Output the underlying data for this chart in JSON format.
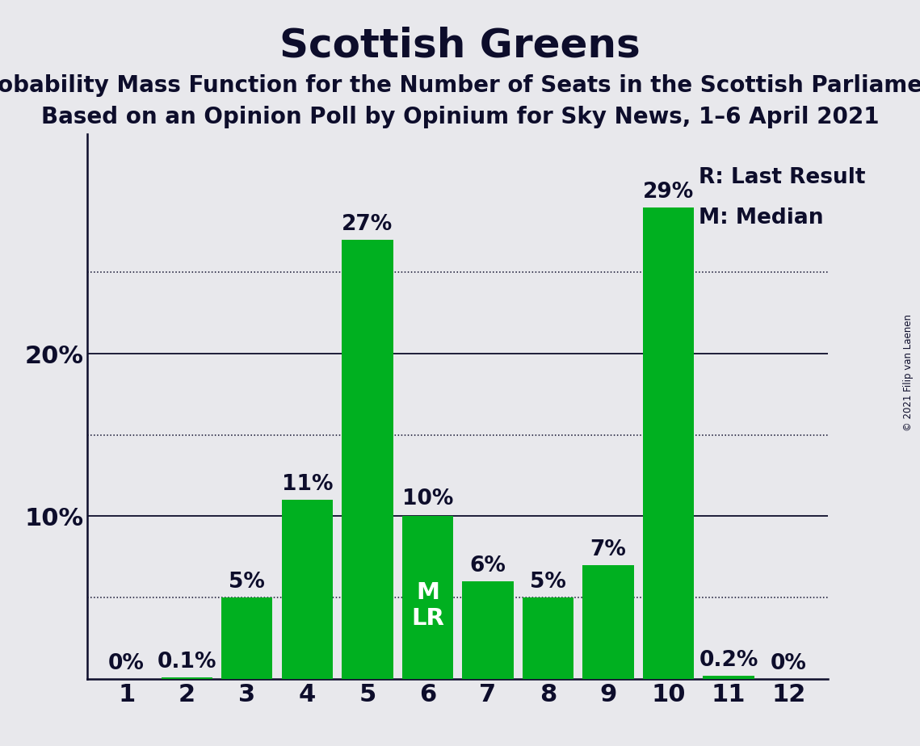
{
  "title": "Scottish Greens",
  "subtitle1": "Probability Mass Function for the Number of Seats in the Scottish Parliament",
  "subtitle2": "Based on an Opinion Poll by Opinium for Sky News, 1–6 April 2021",
  "copyright": "© 2021 Filip van Laenen",
  "categories": [
    1,
    2,
    3,
    4,
    5,
    6,
    7,
    8,
    9,
    10,
    11,
    12
  ],
  "values": [
    0.0,
    0.001,
    0.05,
    0.11,
    0.27,
    0.1,
    0.06,
    0.05,
    0.07,
    0.29,
    0.002,
    0.0
  ],
  "labels": [
    "0%",
    "0.1%",
    "5%",
    "11%",
    "27%",
    "10%",
    "6%",
    "5%",
    "7%",
    "29%",
    "0.2%",
    "0%"
  ],
  "bar_color": "#00b020",
  "fig_background_color": "#e8e8ec",
  "plot_background_color": "#f0f0f4",
  "median_seat": 6,
  "last_result_seat": 6,
  "legend_note1": "R: Last Result",
  "legend_note2": "M: Median",
  "ylim": [
    0,
    0.335
  ],
  "yticks": [
    0.1,
    0.2
  ],
  "ytick_labels": [
    "10%",
    "20%"
  ],
  "yticks_dotted": [
    0.05,
    0.15,
    0.25
  ],
  "ytick_solid": [
    0.1,
    0.2
  ],
  "title_fontsize": 36,
  "subtitle_fontsize": 20,
  "label_fontsize": 19,
  "tick_fontsize": 22,
  "axis_color": "#0d0d2b",
  "mlr_fontsize": 21
}
